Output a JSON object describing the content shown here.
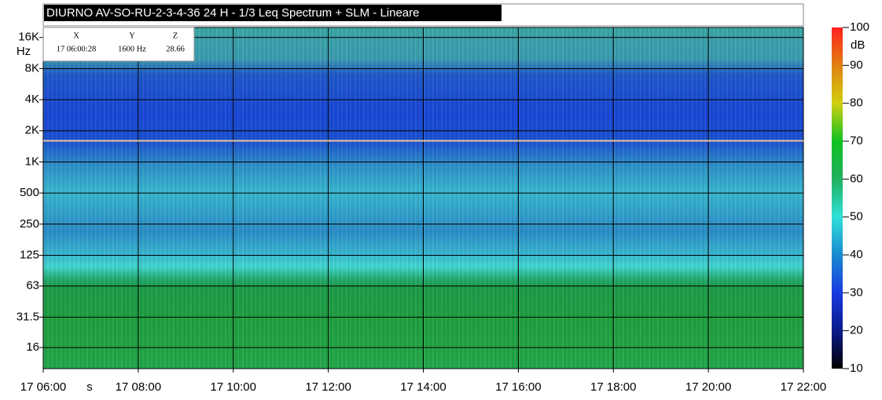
{
  "chart_data": {
    "type": "spectrogram",
    "title": "DIURNO AV-SO-RU-2-3-4-36 24 H - 1/3 Leq Spectrum + SLM - Lineare",
    "y_unit": "Hz",
    "x_unit": "s",
    "log_y": true,
    "grid": true,
    "ylim": [
      10,
      20000
    ],
    "yticks": [
      {
        "value": 16000,
        "label": "16K"
      },
      {
        "value": 8000,
        "label": "8K"
      },
      {
        "value": 4000,
        "label": "4K"
      },
      {
        "value": 2000,
        "label": "2K"
      },
      {
        "value": 1000,
        "label": "1K"
      },
      500,
      250,
      125,
      63,
      31.5,
      16
    ],
    "xlim": [
      6,
      22
    ],
    "xticks": [
      {
        "value": 6,
        "label": "17 06:00"
      },
      {
        "value": 8,
        "label": "17 08:00"
      },
      {
        "value": 10,
        "label": "17 10:00"
      },
      {
        "value": 12,
        "label": "17 12:00"
      },
      {
        "value": 14,
        "label": "17 14:00"
      },
      {
        "value": 16,
        "label": "17 16:00"
      },
      {
        "value": 18,
        "label": "17 18:00"
      },
      {
        "value": 20,
        "label": "17 20:00"
      },
      {
        "value": 22,
        "label": "17 22:00"
      }
    ],
    "colorbar": {
      "unit": "dB",
      "lim": [
        10,
        100
      ],
      "ticks": [
        10,
        20,
        30,
        40,
        50,
        60,
        70,
        80,
        90,
        100
      ],
      "colors": [
        "#000000",
        "#0a1a8a",
        "#1a3ae0",
        "#1a8ad0",
        "#30e0d8",
        "#20b060",
        "#10c020",
        "#d0d010",
        "#e08010",
        "#ff2020"
      ]
    },
    "cursor": {
      "x_header": "X",
      "y_header": "Y",
      "z_header": "Z",
      "x": "17 06:00:28",
      "y": {
        "value": 1600,
        "label": "1600 Hz"
      },
      "z": 28.66
    }
  }
}
